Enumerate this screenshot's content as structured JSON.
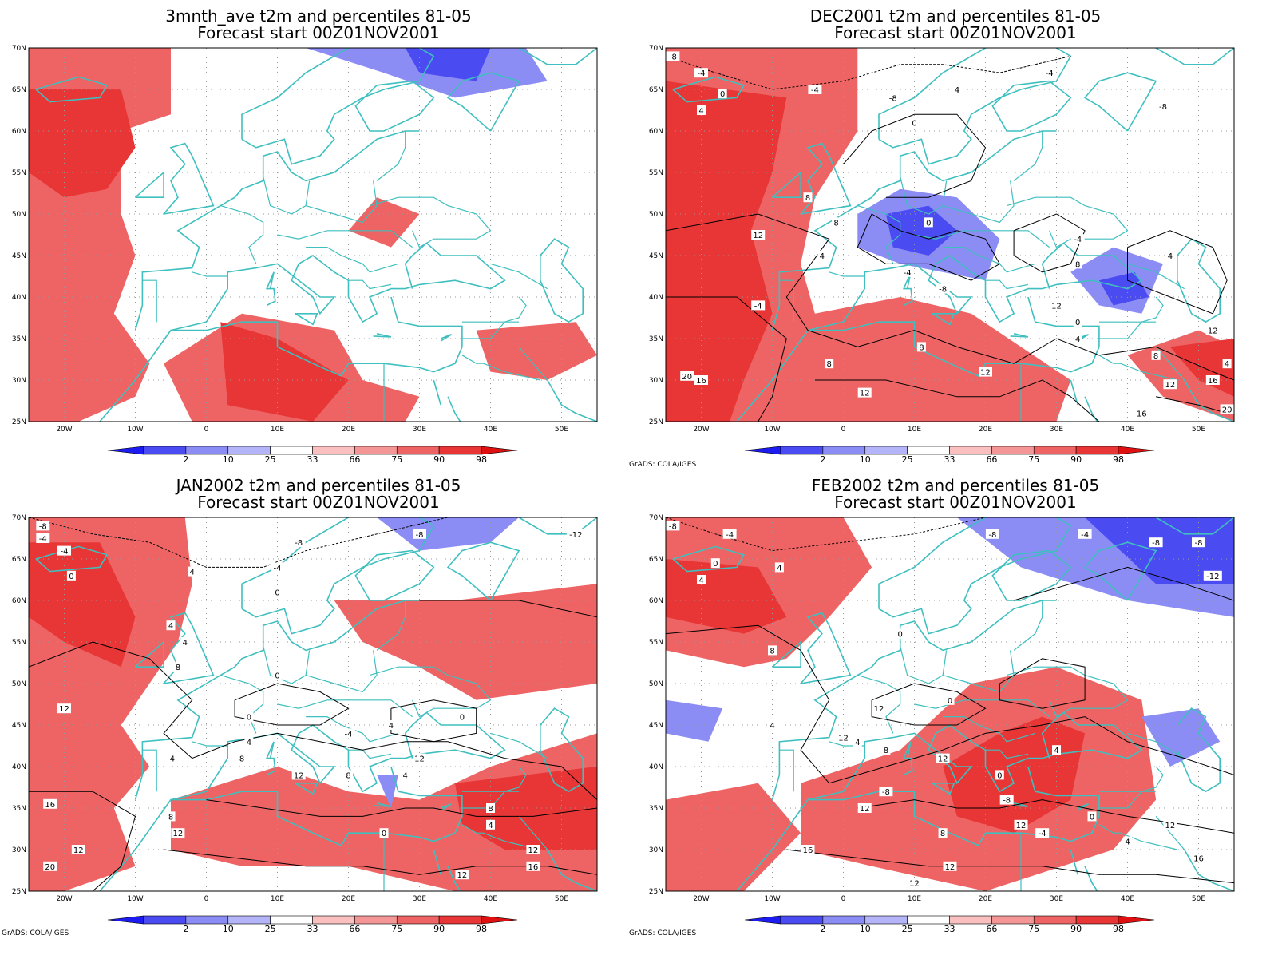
{
  "panels": [
    {
      "id": "3mnth",
      "title_line1": "3mnth_ave t2m and percentiles 81-05",
      "title_line2": "Forecast start 00Z01NOV2001",
      "credit": "",
      "contours": []
    },
    {
      "id": "dec",
      "title_line1": "DEC2001 t2m and percentiles 81-05",
      "title_line2": "Forecast start 00Z01NOV2001",
      "credit": "GrADS: COLA/IGES",
      "contours": [
        "-8",
        "-4",
        "0",
        "4",
        "-4",
        "-8",
        "4",
        "-4",
        "0",
        "-8",
        "8",
        "8",
        "12",
        "0",
        "4",
        "-4",
        "-4",
        "-8",
        "-4",
        "8",
        "4",
        "16",
        "12",
        "0",
        "4",
        "12",
        "8",
        "8",
        "20",
        "12",
        "8",
        "12",
        "16",
        "20",
        "4",
        "12",
        "16"
      ]
    },
    {
      "id": "jan",
      "title_line1": "JAN2002 t2m and percentiles 81-05",
      "title_line2": "Forecast start 00Z01NOV2001",
      "credit": "GrADS: COLA/IGES",
      "contours": [
        "-8",
        "-4",
        "-4",
        "0",
        "4",
        "4",
        "-4",
        "-8",
        "-8",
        "-12",
        "0",
        "4",
        "8",
        "0",
        "0",
        "12",
        "-4",
        "4",
        "8",
        "12",
        "12",
        "4",
        "0",
        "4",
        "8",
        "16",
        "8",
        "12",
        "-4",
        "0",
        "8",
        "4",
        "12",
        "12",
        "20",
        "12",
        "16"
      ]
    },
    {
      "id": "feb",
      "title_line1": "FEB2002 t2m and percentiles 81-05",
      "title_line2": "Forecast start 00Z01NOV2001",
      "credit": "GrADS: COLA/IGES",
      "contours": [
        "-8",
        "-4",
        "0",
        "4",
        "4",
        "8",
        "-8",
        "-4",
        "-8",
        "-8",
        "-12",
        "0",
        "0",
        "12",
        "4",
        "4",
        "12",
        "8",
        "12",
        "4",
        "0",
        "-8",
        "12",
        "8",
        "12",
        "12",
        "16",
        "12",
        "-4",
        "0",
        "4",
        "-8",
        "16",
        "12"
      ]
    }
  ],
  "map": {
    "lat_labels": [
      "70N",
      "65N",
      "60N",
      "55N",
      "50N",
      "45N",
      "40N",
      "35N",
      "30N",
      "25N"
    ],
    "lon_labels": [
      "20W",
      "10W",
      "0",
      "10E",
      "20E",
      "30E",
      "40E",
      "50E"
    ]
  },
  "colorbar": {
    "labels": [
      "2",
      "10",
      "25",
      "33",
      "66",
      "75",
      "90",
      "98"
    ],
    "colors": [
      "#1c1cf0",
      "#4b4bf2",
      "#8c8cf5",
      "#b4b4f8",
      "#ffffff",
      "#fac0c0",
      "#f59696",
      "#ee6464",
      "#e83535",
      "#e01010"
    ]
  },
  "map_colors": {
    "coast": "#3fbfbf",
    "high": "#ee6464",
    "very_high": "#e83535",
    "low": "#8c8cf5",
    "very_low": "#4b4bf2",
    "contour": "#000000",
    "grid": "#999999"
  }
}
